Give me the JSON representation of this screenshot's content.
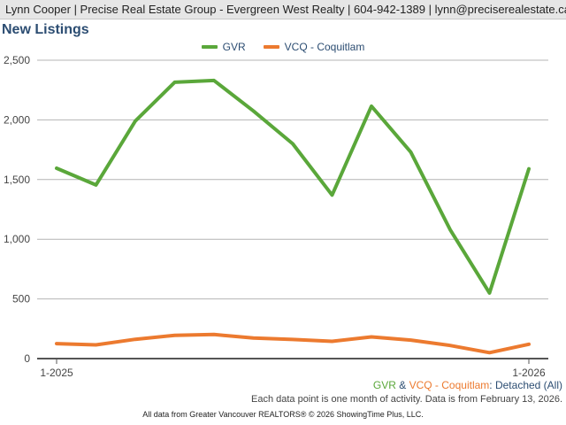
{
  "header": {
    "text": "Lynn Cooper | Precise Real Estate Group - Evergreen West Realty | 604-942-1389 | lynn@preciserealestate.ca"
  },
  "caption": {
    "gvr": "GVR",
    "amp": " & ",
    "vcq": "VCQ - Coquitlam",
    "rest": ": Detached (All)"
  },
  "note": "Each data point is one month of activity. Data is from February 13, 2026.",
  "source": "All data from Greater Vancouver REALTORS® © 2026 ShowingTime Plus, LLC.",
  "colors": {
    "gvr": "#5aa73a",
    "vcq": "#ec7a2f",
    "title": "#2c4d72"
  },
  "chart_data": {
    "type": "line",
    "title": "New Listings",
    "x": [
      "1-2025",
      "2-2025",
      "3-2025",
      "4-2025",
      "5-2025",
      "6-2025",
      "7-2025",
      "8-2025",
      "9-2025",
      "10-2025",
      "11-2025",
      "12-2025",
      "1-2026"
    ],
    "x_tick_labels": [
      "1-2025",
      "1-2026"
    ],
    "y_ticks": [
      0,
      500,
      1000,
      1500,
      2000,
      2500
    ],
    "y_tick_labels": [
      "0",
      "500",
      "1,000",
      "1,500",
      "2,000",
      "2,500"
    ],
    "ylim": [
      0,
      2500
    ],
    "grid": true,
    "legend": "top-center",
    "series": [
      {
        "name": "GVR",
        "color": "#5aa73a",
        "values": [
          1595,
          1455,
          1990,
          2315,
          2330,
          2075,
          1800,
          1370,
          2115,
          1730,
          1080,
          550,
          1590
        ]
      },
      {
        "name": "VCQ - Coquitlam",
        "color": "#ec7a2f",
        "values": [
          125,
          115,
          162,
          195,
          202,
          172,
          160,
          145,
          182,
          155,
          110,
          50,
          120
        ]
      }
    ]
  }
}
